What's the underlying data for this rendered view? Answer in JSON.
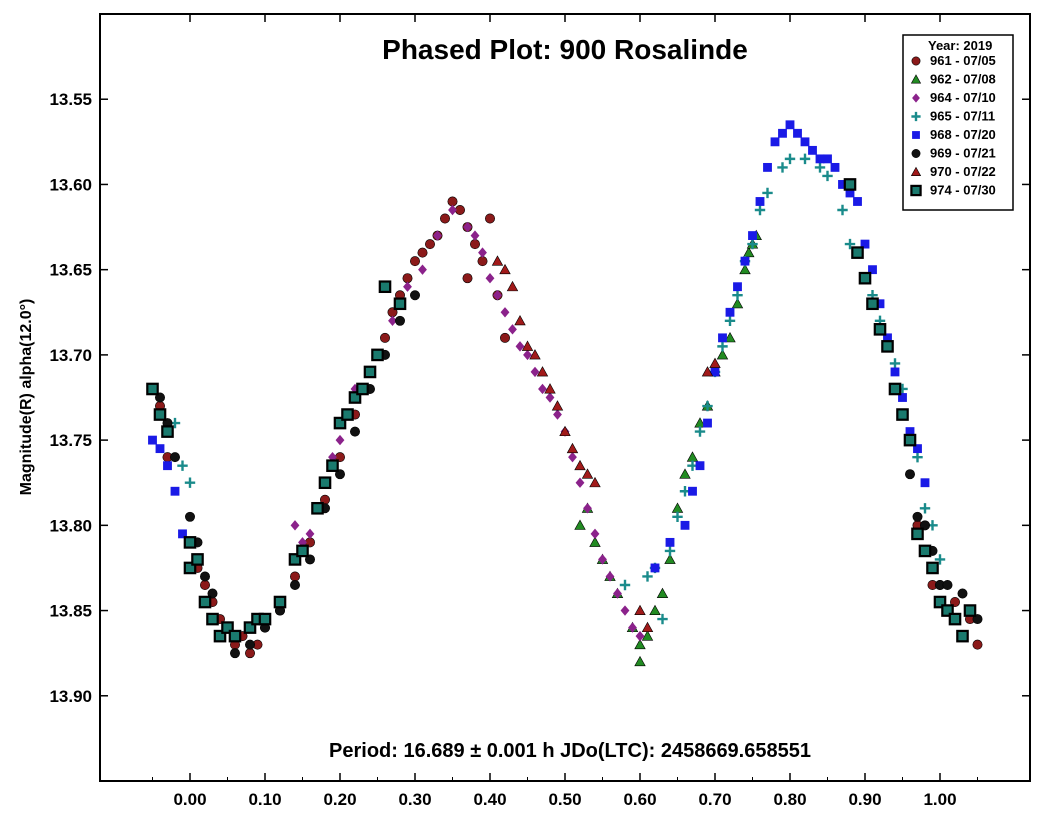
{
  "chart_data": {
    "type": "scatter",
    "title": "Phased Plot: 900 Rosalinde",
    "ylabel": "Magnitude(R) alpha(12.0°)",
    "xlabel": "",
    "annotation": "Period: 16.689 ± 0.001 h  JDo(LTC): 2458669.658551",
    "xlim": [
      -0.12,
      1.12
    ],
    "ylim": [
      13.95,
      13.5
    ],
    "y_inverted": true,
    "grid": false,
    "legend_position": "top-right",
    "legend_title": "Year: 2019",
    "xticks": [
      0,
      0.1,
      0.2,
      0.3,
      0.4,
      0.5,
      0.6,
      0.7,
      0.8,
      0.9,
      1.0
    ],
    "xtick_labels": [
      "0.00",
      "0.10",
      "0.20",
      "0.30",
      "0.40",
      "0.50",
      "0.60",
      "0.70",
      "0.80",
      "0.90",
      "1.00"
    ],
    "yticks": [
      13.55,
      13.6,
      13.65,
      13.7,
      13.75,
      13.8,
      13.85,
      13.9
    ],
    "ytick_labels": [
      "13.55",
      "13.60",
      "13.65",
      "13.70",
      "13.75",
      "13.80",
      "13.85",
      "13.90"
    ],
    "series": [
      {
        "name": "961 - 07/05",
        "marker": "circle",
        "color": "#8b1a1a",
        "points": [
          [
            -0.05,
            13.72
          ],
          [
            -0.04,
            13.73
          ],
          [
            -0.03,
            13.76
          ],
          [
            0.0,
            13.81
          ],
          [
            0.01,
            13.825
          ],
          [
            0.02,
            13.835
          ],
          [
            0.03,
            13.845
          ],
          [
            0.04,
            13.855
          ],
          [
            0.05,
            13.86
          ],
          [
            0.06,
            13.87
          ],
          [
            0.07,
            13.865
          ],
          [
            0.08,
            13.875
          ],
          [
            0.09,
            13.87
          ],
          [
            0.1,
            13.86
          ],
          [
            0.12,
            13.85
          ],
          [
            0.14,
            13.83
          ],
          [
            0.16,
            13.81
          ],
          [
            0.18,
            13.785
          ],
          [
            0.2,
            13.76
          ],
          [
            0.22,
            13.735
          ],
          [
            0.24,
            13.71
          ],
          [
            0.26,
            13.69
          ],
          [
            0.27,
            13.675
          ],
          [
            0.28,
            13.665
          ],
          [
            0.29,
            13.655
          ],
          [
            0.3,
            13.645
          ],
          [
            0.31,
            13.64
          ],
          [
            0.32,
            13.635
          ],
          [
            0.33,
            13.63
          ],
          [
            0.34,
            13.62
          ],
          [
            0.35,
            13.61
          ],
          [
            0.36,
            13.615
          ],
          [
            0.37,
            13.625
          ],
          [
            0.38,
            13.635
          ],
          [
            0.39,
            13.645
          ],
          [
            0.37,
            13.655
          ],
          [
            0.4,
            13.62
          ],
          [
            0.41,
            13.665
          ],
          [
            0.42,
            13.69
          ],
          [
            0.97,
            13.8
          ],
          [
            0.98,
            13.815
          ],
          [
            0.99,
            13.835
          ],
          [
            1.0,
            13.835
          ],
          [
            1.02,
            13.845
          ],
          [
            1.04,
            13.855
          ],
          [
            1.05,
            13.87
          ]
        ]
      },
      {
        "name": "962 - 07/08",
        "marker": "triangle",
        "color": "#228b22",
        "points": [
          [
            0.52,
            13.8
          ],
          [
            0.53,
            13.79
          ],
          [
            0.54,
            13.81
          ],
          [
            0.55,
            13.82
          ],
          [
            0.56,
            13.83
          ],
          [
            0.57,
            13.84
          ],
          [
            0.59,
            13.86
          ],
          [
            0.6,
            13.87
          ],
          [
            0.6,
            13.88
          ],
          [
            0.61,
            13.865
          ],
          [
            0.62,
            13.85
          ],
          [
            0.63,
            13.84
          ],
          [
            0.64,
            13.82
          ],
          [
            0.65,
            13.79
          ],
          [
            0.66,
            13.77
          ],
          [
            0.67,
            13.76
          ],
          [
            0.68,
            13.74
          ],
          [
            0.69,
            13.73
          ],
          [
            0.7,
            13.71
          ],
          [
            0.71,
            13.7
          ],
          [
            0.72,
            13.69
          ],
          [
            0.73,
            13.67
          ],
          [
            0.74,
            13.65
          ],
          [
            0.745,
            13.64
          ],
          [
            0.75,
            13.635
          ],
          [
            0.755,
            13.63
          ]
        ]
      },
      {
        "name": "964 - 07/10",
        "marker": "diamond",
        "color": "#8b228b",
        "points": [
          [
            0.14,
            13.8
          ],
          [
            0.15,
            13.81
          ],
          [
            0.16,
            13.805
          ],
          [
            0.17,
            13.79
          ],
          [
            0.18,
            13.775
          ],
          [
            0.19,
            13.76
          ],
          [
            0.2,
            13.75
          ],
          [
            0.21,
            13.735
          ],
          [
            0.22,
            13.72
          ],
          [
            0.25,
            13.7
          ],
          [
            0.27,
            13.68
          ],
          [
            0.29,
            13.66
          ],
          [
            0.31,
            13.65
          ],
          [
            0.33,
            13.63
          ],
          [
            0.35,
            13.615
          ],
          [
            0.37,
            13.625
          ],
          [
            0.38,
            13.63
          ],
          [
            0.39,
            13.64
          ],
          [
            0.4,
            13.655
          ],
          [
            0.41,
            13.665
          ],
          [
            0.42,
            13.675
          ],
          [
            0.43,
            13.685
          ],
          [
            0.44,
            13.695
          ],
          [
            0.45,
            13.7
          ],
          [
            0.46,
            13.71
          ],
          [
            0.47,
            13.72
          ],
          [
            0.48,
            13.725
          ],
          [
            0.49,
            13.735
          ],
          [
            0.5,
            13.745
          ],
          [
            0.51,
            13.76
          ],
          [
            0.52,
            13.775
          ],
          [
            0.53,
            13.79
          ],
          [
            0.54,
            13.805
          ],
          [
            0.55,
            13.82
          ],
          [
            0.56,
            13.83
          ],
          [
            0.57,
            13.84
          ],
          [
            0.58,
            13.85
          ],
          [
            0.59,
            13.86
          ],
          [
            0.6,
            13.865
          ]
        ]
      },
      {
        "name": "965 - 07/11",
        "marker": "plus",
        "color": "#1a8b8b",
        "points": [
          [
            -0.05,
            13.72
          ],
          [
            -0.03,
            13.745
          ],
          [
            -0.02,
            13.74
          ],
          [
            -0.01,
            13.765
          ],
          [
            0.0,
            13.775
          ],
          [
            0.58,
            13.835
          ],
          [
            0.61,
            13.83
          ],
          [
            0.62,
            13.825
          ],
          [
            0.63,
            13.855
          ],
          [
            0.64,
            13.815
          ],
          [
            0.65,
            13.795
          ],
          [
            0.66,
            13.78
          ],
          [
            0.67,
            13.765
          ],
          [
            0.68,
            13.745
          ],
          [
            0.69,
            13.73
          ],
          [
            0.7,
            13.71
          ],
          [
            0.71,
            13.695
          ],
          [
            0.72,
            13.68
          ],
          [
            0.73,
            13.665
          ],
          [
            0.74,
            13.645
          ],
          [
            0.75,
            13.635
          ],
          [
            0.76,
            13.615
          ],
          [
            0.77,
            13.605
          ],
          [
            0.79,
            13.59
          ],
          [
            0.8,
            13.585
          ],
          [
            0.82,
            13.585
          ],
          [
            0.84,
            13.59
          ],
          [
            0.85,
            13.595
          ],
          [
            0.87,
            13.615
          ],
          [
            0.88,
            13.635
          ],
          [
            0.89,
            13.64
          ],
          [
            0.9,
            13.655
          ],
          [
            0.91,
            13.665
          ],
          [
            0.92,
            13.68
          ],
          [
            0.93,
            13.695
          ],
          [
            0.94,
            13.705
          ],
          [
            0.95,
            13.72
          ],
          [
            0.96,
            13.75
          ],
          [
            0.97,
            13.76
          ],
          [
            0.98,
            13.79
          ],
          [
            0.99,
            13.8
          ],
          [
            1.0,
            13.82
          ]
        ]
      },
      {
        "name": "968 - 07/20",
        "marker": "square",
        "color": "#1a1ae6",
        "points": [
          [
            -0.05,
            13.75
          ],
          [
            -0.04,
            13.755
          ],
          [
            -0.03,
            13.765
          ],
          [
            -0.02,
            13.78
          ],
          [
            -0.01,
            13.805
          ],
          [
            0.62,
            13.825
          ],
          [
            0.64,
            13.81
          ],
          [
            0.66,
            13.8
          ],
          [
            0.67,
            13.78
          ],
          [
            0.68,
            13.765
          ],
          [
            0.69,
            13.74
          ],
          [
            0.7,
            13.71
          ],
          [
            0.71,
            13.69
          ],
          [
            0.72,
            13.675
          ],
          [
            0.73,
            13.66
          ],
          [
            0.74,
            13.645
          ],
          [
            0.75,
            13.63
          ],
          [
            0.76,
            13.61
          ],
          [
            0.77,
            13.59
          ],
          [
            0.78,
            13.575
          ],
          [
            0.79,
            13.57
          ],
          [
            0.8,
            13.565
          ],
          [
            0.81,
            13.57
          ],
          [
            0.82,
            13.575
          ],
          [
            0.83,
            13.58
          ],
          [
            0.84,
            13.585
          ],
          [
            0.85,
            13.585
          ],
          [
            0.86,
            13.59
          ],
          [
            0.87,
            13.6
          ],
          [
            0.88,
            13.605
          ],
          [
            0.89,
            13.61
          ],
          [
            0.9,
            13.635
          ],
          [
            0.91,
            13.65
          ],
          [
            0.92,
            13.67
          ],
          [
            0.93,
            13.69
          ],
          [
            0.94,
            13.71
          ],
          [
            0.95,
            13.725
          ],
          [
            0.96,
            13.745
          ],
          [
            0.97,
            13.755
          ],
          [
            0.98,
            13.775
          ]
        ]
      },
      {
        "name": "969 - 07/21",
        "marker": "circle",
        "color": "#111111",
        "points": [
          [
            -0.04,
            13.725
          ],
          [
            -0.03,
            13.74
          ],
          [
            -0.02,
            13.76
          ],
          [
            0.0,
            13.795
          ],
          [
            0.01,
            13.81
          ],
          [
            0.02,
            13.83
          ],
          [
            0.03,
            13.84
          ],
          [
            0.05,
            13.86
          ],
          [
            0.06,
            13.875
          ],
          [
            0.08,
            13.87
          ],
          [
            0.1,
            13.86
          ],
          [
            0.12,
            13.85
          ],
          [
            0.14,
            13.835
          ],
          [
            0.16,
            13.82
          ],
          [
            0.18,
            13.79
          ],
          [
            0.2,
            13.77
          ],
          [
            0.22,
            13.745
          ],
          [
            0.24,
            13.72
          ],
          [
            0.26,
            13.7
          ],
          [
            0.28,
            13.68
          ],
          [
            0.3,
            13.665
          ],
          [
            0.96,
            13.77
          ],
          [
            0.97,
            13.795
          ],
          [
            0.98,
            13.8
          ],
          [
            0.99,
            13.815
          ],
          [
            1.0,
            13.835
          ],
          [
            1.01,
            13.835
          ],
          [
            1.03,
            13.84
          ],
          [
            1.05,
            13.855
          ]
        ]
      },
      {
        "name": "970 - 07/22",
        "marker": "triangle",
        "color": "#a11a1a",
        "points": [
          [
            0.41,
            13.645
          ],
          [
            0.42,
            13.65
          ],
          [
            0.43,
            13.66
          ],
          [
            0.44,
            13.68
          ],
          [
            0.45,
            13.695
          ],
          [
            0.46,
            13.7
          ],
          [
            0.47,
            13.71
          ],
          [
            0.48,
            13.72
          ],
          [
            0.49,
            13.73
          ],
          [
            0.5,
            13.745
          ],
          [
            0.51,
            13.755
          ],
          [
            0.52,
            13.765
          ],
          [
            0.53,
            13.77
          ],
          [
            0.54,
            13.775
          ],
          [
            0.6,
            13.85
          ],
          [
            0.61,
            13.86
          ],
          [
            0.69,
            13.71
          ],
          [
            0.7,
            13.705
          ]
        ]
      },
      {
        "name": "974 - 07/30",
        "marker": "square-outlined",
        "color": "#1a7a6e",
        "points": [
          [
            -0.05,
            13.72
          ],
          [
            -0.04,
            13.735
          ],
          [
            -0.03,
            13.745
          ],
          [
            0.0,
            13.81
          ],
          [
            0.0,
            13.825
          ],
          [
            0.01,
            13.82
          ],
          [
            0.02,
            13.845
          ],
          [
            0.03,
            13.855
          ],
          [
            0.04,
            13.865
          ],
          [
            0.05,
            13.86
          ],
          [
            0.06,
            13.865
          ],
          [
            0.08,
            13.86
          ],
          [
            0.09,
            13.855
          ],
          [
            0.1,
            13.855
          ],
          [
            0.12,
            13.845
          ],
          [
            0.14,
            13.82
          ],
          [
            0.15,
            13.815
          ],
          [
            0.17,
            13.79
          ],
          [
            0.18,
            13.775
          ],
          [
            0.19,
            13.765
          ],
          [
            0.2,
            13.74
          ],
          [
            0.21,
            13.735
          ],
          [
            0.22,
            13.725
          ],
          [
            0.23,
            13.72
          ],
          [
            0.24,
            13.71
          ],
          [
            0.25,
            13.7
          ],
          [
            0.26,
            13.66
          ],
          [
            0.28,
            13.67
          ],
          [
            0.88,
            13.6
          ],
          [
            0.89,
            13.64
          ],
          [
            0.9,
            13.655
          ],
          [
            0.91,
            13.67
          ],
          [
            0.92,
            13.685
          ],
          [
            0.93,
            13.695
          ],
          [
            0.94,
            13.72
          ],
          [
            0.95,
            13.735
          ],
          [
            0.96,
            13.75
          ],
          [
            0.97,
            13.805
          ],
          [
            0.98,
            13.815
          ],
          [
            0.99,
            13.825
          ],
          [
            1.0,
            13.845
          ],
          [
            1.01,
            13.85
          ],
          [
            1.02,
            13.855
          ],
          [
            1.03,
            13.865
          ],
          [
            1.04,
            13.85
          ]
        ]
      }
    ]
  }
}
